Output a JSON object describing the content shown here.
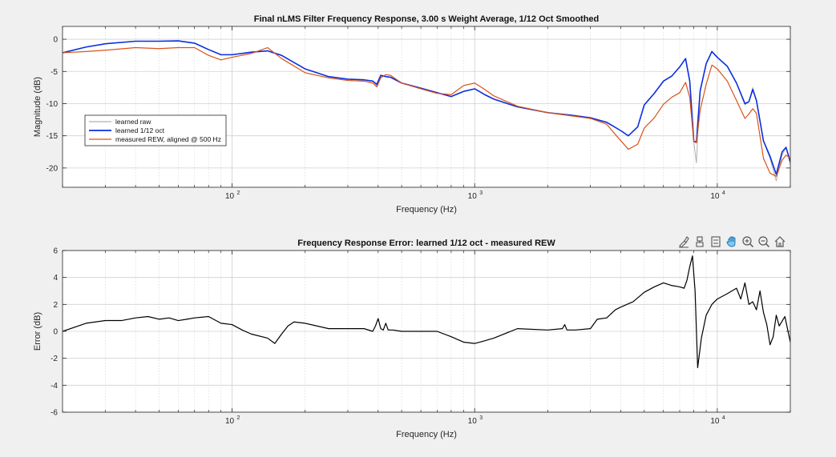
{
  "figure": {
    "background": "#f0f0f0"
  },
  "toolbar": {
    "icons": [
      "brush-icon",
      "data-tips-icon",
      "legend-icon",
      "pan-icon",
      "zoom-in-icon",
      "zoom-out-icon",
      "home-icon"
    ]
  },
  "colors": {
    "learned_raw": "#b0b0b0",
    "learned_smooth": "#0a2ee0",
    "measured": "#d95319",
    "error": "#000000",
    "grid": "#d8d8d8",
    "axes": "#262626"
  },
  "chart_data": [
    {
      "type": "line",
      "title": "Final nLMS Filter Frequency Response, 3.00 s Weight Average, 1/12 Oct Smoothed",
      "xlabel": "Frequency (Hz)",
      "ylabel": "Magnitude (dB)",
      "xscale": "log",
      "xlim": [
        20,
        20000
      ],
      "ylim": [
        -23,
        2
      ],
      "yticks": [
        0,
        -5,
        -10,
        -15,
        -20
      ],
      "xtick_labels": [
        {
          "value": 100,
          "base": "10",
          "exp": "2"
        },
        {
          "value": 1000,
          "base": "10",
          "exp": "3"
        },
        {
          "value": 10000,
          "base": "10",
          "exp": "4"
        }
      ],
      "grid": true,
      "legend_position": "left",
      "series": [
        {
          "name": "learned raw",
          "key": "learned_raw",
          "x": [
            20,
            25,
            30,
            40,
            50,
            60,
            70,
            80,
            90,
            100,
            120,
            140,
            160,
            200,
            250,
            300,
            350,
            380,
            395,
            410,
            430,
            450,
            500,
            600,
            700,
            800,
            900,
            1000,
            1100,
            1200,
            1500,
            2000,
            2500,
            3000,
            3500,
            4000,
            4300,
            4700,
            5000,
            5500,
            6000,
            6500,
            7000,
            7400,
            7700,
            8000,
            8200,
            8500,
            9000,
            9500,
            10000,
            11000,
            12000,
            13000,
            13500,
            14000,
            14500,
            15500,
            16500,
            17500,
            18500,
            19200,
            20000
          ],
          "y": [
            -2.1,
            -1.2,
            -0.7,
            -0.3,
            -0.3,
            -0.25,
            -0.6,
            -1.6,
            -2.4,
            -2.4,
            -2.0,
            -1.8,
            -2.5,
            -4.6,
            -5.8,
            -6.2,
            -6.3,
            -6.5,
            -7.2,
            -5.6,
            -5.8,
            -5.9,
            -6.8,
            -7.6,
            -8.3,
            -8.9,
            -8.1,
            -7.7,
            -8.6,
            -9.3,
            -10.5,
            -11.4,
            -11.8,
            -12.2,
            -12.9,
            -14.2,
            -15.0,
            -13.6,
            -10.2,
            -8.4,
            -6.5,
            -5.7,
            -4.3,
            -3.0,
            -6.5,
            -16.0,
            -19.2,
            -8.0,
            -3.8,
            -1.9,
            -2.8,
            -4.2,
            -6.8,
            -10.2,
            -9.7,
            -7.5,
            -9.5,
            -15.8,
            -18.5,
            -22.0,
            -18.0,
            -16.8,
            -19.5
          ]
        },
        {
          "name": "learned 1/12 oct",
          "key": "learned_smooth",
          "x": [
            20,
            25,
            30,
            40,
            50,
            60,
            70,
            80,
            90,
            100,
            120,
            140,
            160,
            200,
            250,
            300,
            350,
            380,
            395,
            410,
            430,
            450,
            500,
            600,
            700,
            800,
            900,
            1000,
            1100,
            1200,
            1500,
            2000,
            2500,
            3000,
            3500,
            4000,
            4300,
            4700,
            5000,
            5500,
            6000,
            6500,
            7000,
            7400,
            7700,
            8000,
            8200,
            8500,
            9000,
            9500,
            10000,
            11000,
            12000,
            13000,
            13500,
            14000,
            14500,
            15500,
            16500,
            17500,
            18500,
            19200,
            20000
          ],
          "y": [
            -2.1,
            -1.2,
            -0.7,
            -0.3,
            -0.3,
            -0.25,
            -0.6,
            -1.6,
            -2.4,
            -2.4,
            -2.0,
            -1.8,
            -2.5,
            -4.6,
            -5.8,
            -6.2,
            -6.3,
            -6.5,
            -7.0,
            -5.6,
            -5.8,
            -5.9,
            -6.8,
            -7.6,
            -8.3,
            -8.9,
            -8.1,
            -7.7,
            -8.6,
            -9.3,
            -10.5,
            -11.4,
            -11.8,
            -12.2,
            -12.9,
            -14.2,
            -15.0,
            -13.6,
            -10.2,
            -8.4,
            -6.5,
            -5.7,
            -4.3,
            -3.0,
            -6.5,
            -15.8,
            -16.0,
            -8.0,
            -3.8,
            -1.9,
            -2.8,
            -4.2,
            -6.8,
            -10.0,
            -9.7,
            -7.8,
            -9.5,
            -15.8,
            -18.2,
            -21.0,
            -17.5,
            -16.8,
            -19.0
          ]
        },
        {
          "name": "measured REW, aligned @ 500 Hz",
          "key": "measured",
          "x": [
            20,
            25,
            30,
            40,
            50,
            60,
            70,
            80,
            90,
            100,
            120,
            140,
            160,
            200,
            250,
            300,
            350,
            380,
            395,
            410,
            430,
            450,
            500,
            600,
            700,
            800,
            900,
            1000,
            1100,
            1200,
            1500,
            2000,
            2500,
            3000,
            3500,
            3800,
            4300,
            4700,
            5000,
            5500,
            6000,
            6500,
            7000,
            7400,
            7700,
            8000,
            8200,
            8500,
            9000,
            9500,
            10000,
            11000,
            12000,
            13000,
            13500,
            14000,
            14500,
            15500,
            16500,
            17500,
            18500,
            19200,
            20000
          ],
          "y": [
            -2.1,
            -1.9,
            -1.7,
            -1.3,
            -1.45,
            -1.3,
            -1.3,
            -2.5,
            -3.2,
            -2.8,
            -2.2,
            -1.3,
            -3.0,
            -5.2,
            -6.0,
            -6.4,
            -6.5,
            -6.8,
            -7.4,
            -6.0,
            -5.5,
            -5.6,
            -6.8,
            -7.7,
            -8.4,
            -8.6,
            -7.2,
            -6.8,
            -7.8,
            -8.8,
            -10.4,
            -11.4,
            -11.9,
            -12.3,
            -13.2,
            -14.8,
            -17.1,
            -16.3,
            -13.8,
            -12.2,
            -10.1,
            -9.0,
            -8.3,
            -6.7,
            -9.0,
            -15.9,
            -16.1,
            -11.0,
            -7.0,
            -4.0,
            -4.6,
            -6.5,
            -9.5,
            -12.3,
            -11.6,
            -10.8,
            -11.5,
            -18.5,
            -20.8,
            -21.3,
            -18.8,
            -18.0,
            -18.5
          ]
        }
      ]
    },
    {
      "type": "line",
      "title": "Frequency Response Error: learned 1/12 oct - measured REW",
      "xlabel": "Frequency (Hz)",
      "ylabel": "Error (dB)",
      "xscale": "log",
      "xlim": [
        20,
        20000
      ],
      "ylim": [
        -6,
        6
      ],
      "yticks": [
        6,
        4,
        2,
        0,
        -2,
        -4,
        -6
      ],
      "xtick_labels": [
        {
          "value": 100,
          "base": "10",
          "exp": "2"
        },
        {
          "value": 1000,
          "base": "10",
          "exp": "3"
        },
        {
          "value": 10000,
          "base": "10",
          "exp": "4"
        }
      ],
      "grid": true,
      "series": [
        {
          "key": "error",
          "x": [
            20,
            25,
            30,
            35,
            40,
            45,
            50,
            55,
            60,
            65,
            70,
            80,
            90,
            100,
            110,
            120,
            140,
            150,
            160,
            170,
            180,
            200,
            250,
            300,
            350,
            380,
            390,
            400,
            410,
            420,
            430,
            440,
            460,
            500,
            600,
            700,
            800,
            900,
            1000,
            1100,
            1200,
            1500,
            2000,
            2300,
            2350,
            2400,
            2600,
            3000,
            3200,
            3500,
            3800,
            4000,
            4500,
            5000,
            5500,
            6000,
            6500,
            7000,
            7300,
            7500,
            7700,
            7900,
            8100,
            8300,
            8600,
            9000,
            9500,
            10000,
            11000,
            12000,
            12500,
            13000,
            13500,
            14000,
            14500,
            15000,
            15500,
            16000,
            16500,
            17000,
            17500,
            18000,
            19000,
            20000
          ],
          "y": [
            0.0,
            0.6,
            0.8,
            0.8,
            1.0,
            1.1,
            0.9,
            1.0,
            0.8,
            0.9,
            1.0,
            1.1,
            0.6,
            0.5,
            0.1,
            -0.2,
            -0.5,
            -0.9,
            -0.2,
            0.4,
            0.7,
            0.6,
            0.2,
            0.2,
            0.2,
            0.0,
            0.4,
            0.95,
            0.2,
            0.1,
            0.6,
            0.1,
            0.1,
            0.0,
            0.0,
            0.0,
            -0.4,
            -0.8,
            -0.9,
            -0.7,
            -0.5,
            0.2,
            0.1,
            0.2,
            0.5,
            0.1,
            0.1,
            0.2,
            0.9,
            1.0,
            1.6,
            1.8,
            2.2,
            2.9,
            3.3,
            3.6,
            3.4,
            3.3,
            3.2,
            3.8,
            4.8,
            5.6,
            3.0,
            -2.7,
            -0.5,
            1.2,
            2.0,
            2.4,
            2.8,
            3.2,
            2.4,
            3.6,
            2.0,
            2.2,
            1.6,
            3.0,
            1.4,
            0.5,
            -1.0,
            -0.4,
            1.2,
            0.4,
            1.1,
            -0.8
          ]
        }
      ]
    }
  ]
}
